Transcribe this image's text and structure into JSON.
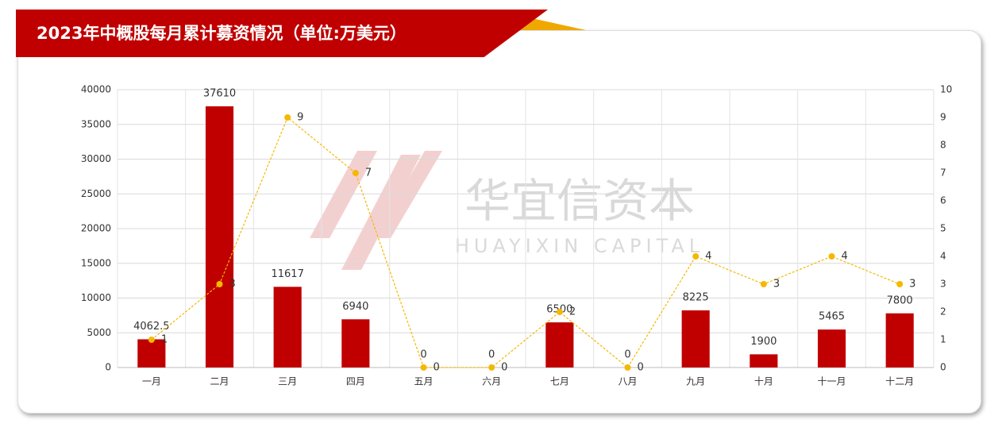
{
  "chart_data": {
    "type": "bar",
    "title": "2023年中概股每月累计募资情况（单位:万美元）",
    "watermark": "华宜信资本",
    "watermark_sub": "HUAYIXIN CAPITAL",
    "categories": [
      "一月",
      "二月",
      "三月",
      "四月",
      "五月",
      "六月",
      "七月",
      "八月",
      "九月",
      "十月",
      "十一月",
      "十二月"
    ],
    "series": [
      {
        "type": "bar",
        "color": "#c00000",
        "values": [
          4062.5,
          37610,
          11617,
          6940,
          0,
          0,
          6500,
          0,
          8225,
          1900,
          5465,
          7800
        ]
      },
      {
        "type": "line",
        "axis": "y2",
        "color": "#f5b800",
        "values": [
          1,
          3,
          9,
          7,
          0,
          0,
          2,
          0,
          4,
          3,
          4,
          3
        ]
      }
    ],
    "ylim": [
      0,
      40000
    ],
    "yticks": [
      0,
      5000,
      10000,
      15000,
      20000,
      25000,
      30000,
      35000,
      40000
    ],
    "y2lim": [
      0,
      10
    ],
    "y2ticks": [
      0,
      1,
      2,
      3,
      4,
      5,
      6,
      7,
      8,
      9,
      10
    ],
    "grid": true
  }
}
